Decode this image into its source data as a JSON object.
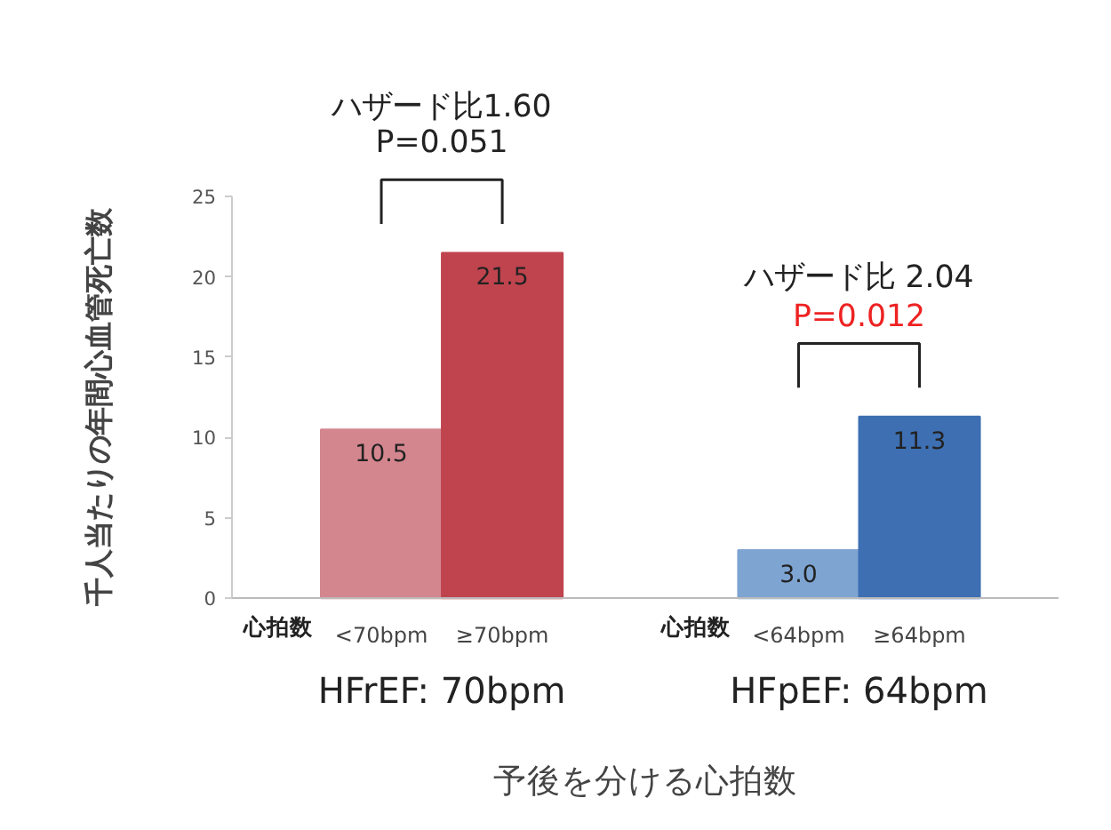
{
  "chart_data": {
    "type": "bar",
    "categories": [
      "<70bpm",
      "≥70bpm",
      "<64bpm",
      "≥64bpm"
    ],
    "values": [
      10.5,
      21.5,
      3.0,
      11.3
    ],
    "colors": [
      "#d4868e",
      "#c0444e",
      "#7ea4d2",
      "#3d6fb2"
    ],
    "ylabel": "千人当たりの年間心血管死亡数",
    "xlabel": "予後を分ける心拍数",
    "ylim": [
      0,
      25
    ],
    "yticks": [
      0,
      5,
      10,
      15,
      20,
      25
    ],
    "value_labels": [
      "10.5",
      "21.5",
      "3.0",
      "11.3"
    ],
    "grid": false,
    "annotations": [
      "ハザード比1.60",
      "P=0.051",
      "ハザード比 2.04",
      "P=0.012",
      "心拍数",
      "心拍数",
      "HFrEF: 70bpm",
      "HFpEF: 64bpm"
    ]
  }
}
